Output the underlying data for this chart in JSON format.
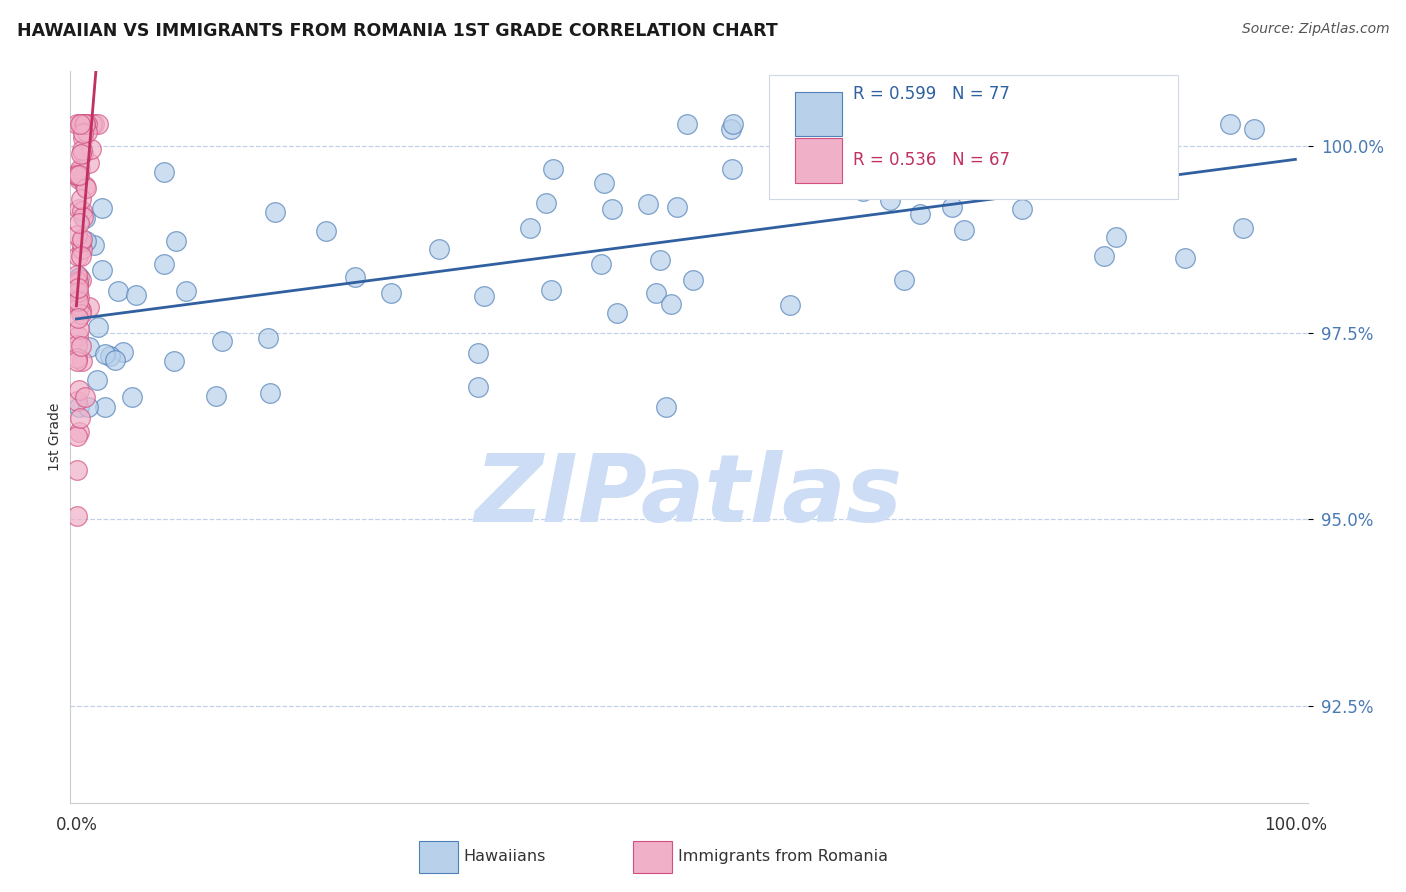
{
  "title": "HAWAIIAN VS IMMIGRANTS FROM ROMANIA 1ST GRADE CORRELATION CHART",
  "source": "Source: ZipAtlas.com",
  "ylabel": "1st Grade",
  "ytick_values": [
    92.5,
    95.0,
    97.5,
    100.0
  ],
  "ylim": [
    91.2,
    101.0
  ],
  "xlim": [
    -0.5,
    101.0
  ],
  "blue_R": 0.599,
  "blue_N": 77,
  "pink_R": 0.536,
  "pink_N": 67,
  "blue_fill": "#b8d0ea",
  "blue_edge": "#5080b8",
  "blue_line": "#3060a0",
  "pink_fill": "#f0b0c8",
  "pink_edge": "#d05080",
  "pink_line": "#c03060",
  "watermark_color": "#ccddf5",
  "grid_color": "#c0d0e8",
  "title_color": "#1a1a1a",
  "source_color": "#555555",
  "ytick_color": "#4a7ab5",
  "xtick_color": "#333333"
}
